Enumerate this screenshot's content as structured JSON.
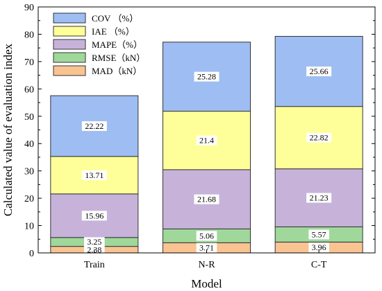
{
  "chart_data": {
    "type": "bar",
    "stacked": true,
    "categories": [
      "Train",
      "N-R",
      "C-T"
    ],
    "series": [
      {
        "name": "MAD（kN）",
        "values": [
          2.38,
          3.71,
          3.96
        ],
        "color": "#f9c392"
      },
      {
        "name": "RMSE（kN）",
        "values": [
          3.25,
          5.06,
          5.57
        ],
        "color": "#9fd89a"
      },
      {
        "name": "MAPE（%）",
        "values": [
          15.96,
          21.68,
          21.23
        ],
        "color": "#c7b3da"
      },
      {
        "name": "IAE （%）",
        "values": [
          13.71,
          21.4,
          22.82
        ],
        "color": "#ffff99"
      },
      {
        "name": "COV （%）",
        "values": [
          22.22,
          25.28,
          25.66
        ],
        "color": "#9ebdf3"
      }
    ],
    "xlabel": "Model",
    "ylabel": "Calculated value of  evaluation index",
    "ylim": [
      0,
      90
    ],
    "yticks": [
      0,
      10,
      20,
      30,
      40,
      50,
      60,
      70,
      80,
      90
    ],
    "legend_position": "top-left",
    "grid": false
  }
}
